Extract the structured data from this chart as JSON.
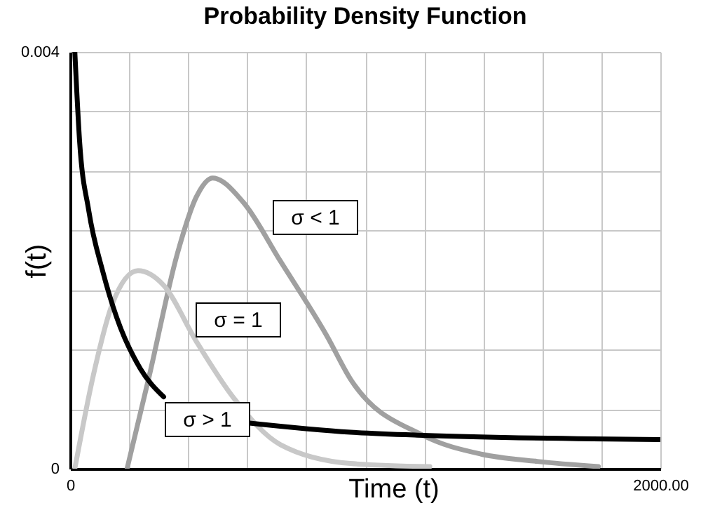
{
  "chart_data": {
    "type": "line",
    "title": "Probability Density Function",
    "xlabel": "Time (t)",
    "ylabel": "f(t)",
    "xlim": [
      0,
      2000
    ],
    "ylim": [
      0,
      0.004
    ],
    "xticks": [
      0,
      {
        "value": 200,
        "label": null
      },
      {
        "value": 400,
        "label": null
      },
      {
        "value": 600,
        "label": null
      },
      {
        "value": 800,
        "label": null
      },
      {
        "value": 1000,
        "label": null
      },
      {
        "value": 1200,
        "label": null
      },
      {
        "value": 1400,
        "label": null
      },
      {
        "value": 1600,
        "label": null
      },
      {
        "value": 1800,
        "label": null
      },
      {
        "value": 2000,
        "label": "2000.00"
      }
    ],
    "yticks": [
      0,
      {
        "value": 0.000571,
        "label": null
      },
      {
        "value": 0.001143,
        "label": null
      },
      {
        "value": 0.001714,
        "label": null
      },
      {
        "value": 0.002286,
        "label": null
      },
      {
        "value": 0.002857,
        "label": null
      },
      {
        "value": 0.003429,
        "label": null
      },
      0.004
    ],
    "grid": true,
    "line_style": "solid",
    "series": [
      {
        "name": "σ < 1",
        "color": "#a0a0a0",
        "x": [
          193,
          269,
          364,
          428,
          483,
          586,
          713,
          871,
          950,
          1196,
          1393,
          1583,
          1790
        ],
        "values": [
          0,
          0.0009,
          0.00207,
          0.00261,
          0.00279,
          0.00256,
          0.00199,
          0.00127,
          0.00086,
          0.00032,
          0.00014,
          7e-05,
          2e-05
        ]
      },
      {
        "name": "σ = 1",
        "color": "#c8c8c8",
        "x": [
          16,
          79,
          143,
          230,
          317,
          428,
          554,
          713,
          950,
          1219
        ],
        "values": [
          0,
          0.0009,
          0.00158,
          0.0019,
          0.00176,
          0.00122,
          0.00068,
          0.00023,
          5e-05,
          2e-05
        ]
      },
      {
        "name": "σ > 1",
        "color": "#000000",
        "x": [
          16,
          32,
          63,
          111,
          158,
          238,
          317,
          395,
          602,
          950,
          1196,
          2000
        ],
        "values": [
          0.004,
          0.00315,
          0.00248,
          0.00189,
          0.00145,
          0.00096,
          0.00069,
          null,
          0.00044,
          0.00035,
          0.00032,
          0.00028
        ]
      }
    ]
  }
}
